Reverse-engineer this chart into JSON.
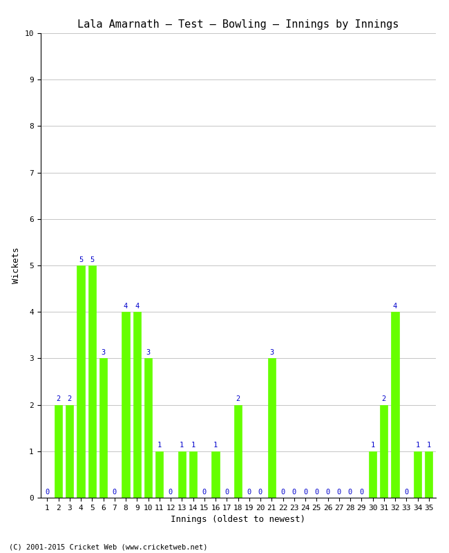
{
  "title": "Lala Amarnath – Test – Bowling – Innings by Innings",
  "xlabel": "Innings (oldest to newest)",
  "ylabel": "Wickets",
  "innings": [
    1,
    2,
    3,
    4,
    5,
    6,
    7,
    8,
    9,
    10,
    11,
    12,
    13,
    14,
    15,
    16,
    17,
    18,
    19,
    20,
    21,
    22,
    23,
    24,
    25,
    26,
    27,
    28,
    29,
    30,
    31,
    32,
    33,
    34,
    35
  ],
  "wickets": [
    0,
    2,
    2,
    5,
    5,
    3,
    0,
    4,
    4,
    3,
    1,
    0,
    1,
    1,
    0,
    1,
    0,
    2,
    0,
    0,
    3,
    0,
    0,
    0,
    0,
    0,
    0,
    0,
    0,
    1,
    2,
    4,
    0,
    1,
    1
  ],
  "bar_color": "#66ff00",
  "label_color": "#0000cc",
  "background_color": "#ffffff",
  "grid_color": "#bbbbbb",
  "ylim": [
    0,
    10
  ],
  "yticks": [
    0,
    1,
    2,
    3,
    4,
    5,
    6,
    7,
    8,
    9,
    10
  ],
  "footnote": "(C) 2001-2015 Cricket Web (www.cricketweb.net)",
  "title_fontsize": 11,
  "axis_label_fontsize": 9,
  "tick_fontsize": 8,
  "label_fontsize": 7.5
}
